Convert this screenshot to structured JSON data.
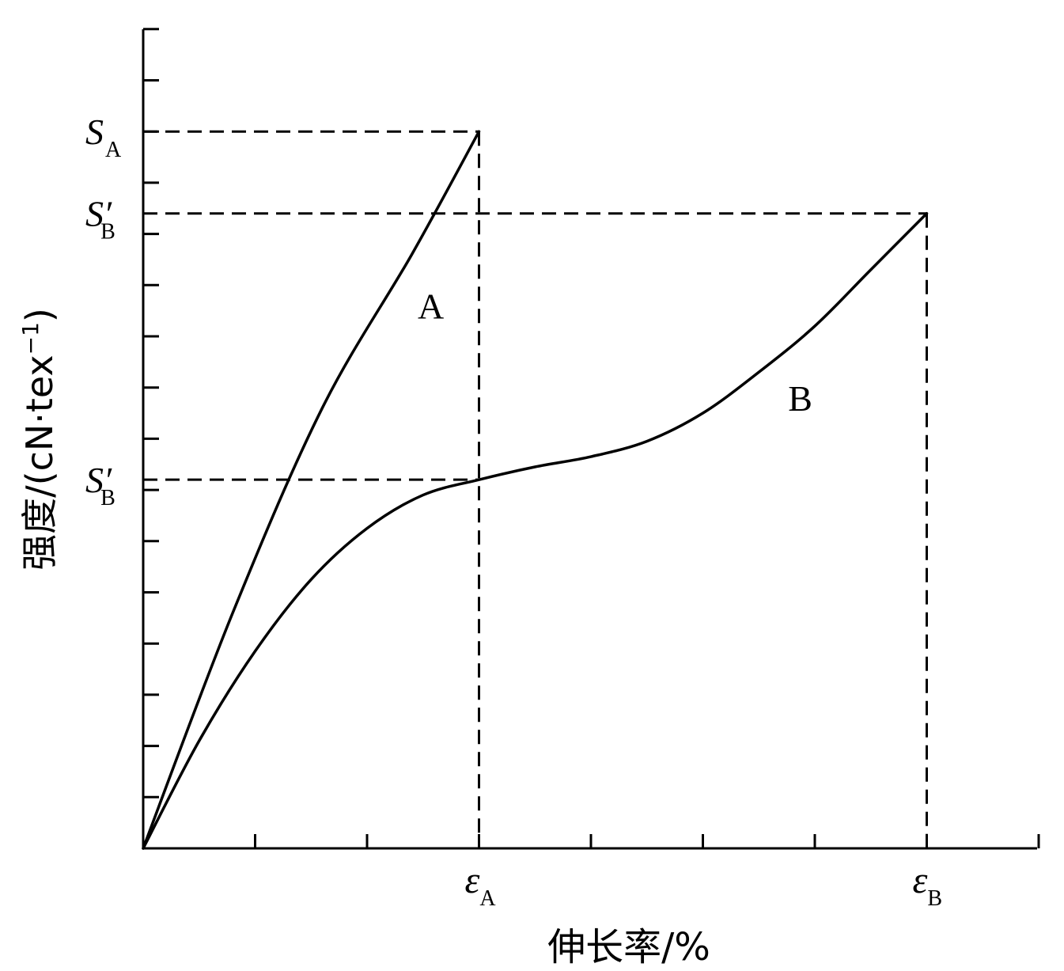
{
  "chart_data": {
    "type": "line",
    "title": "",
    "xlabel": "伸长率/%",
    "ylabel_prefix": "强度/(cN·tex",
    "ylabel_superscript": "−1",
    "ylabel_suffix": ")",
    "xlim": [
      0,
      8
    ],
    "ylim": [
      0,
      16
    ],
    "grid": false,
    "legend": "none",
    "x_ticks": [
      0,
      1,
      2,
      3,
      4,
      5,
      6,
      7,
      8
    ],
    "y_ticks": [
      0,
      1,
      2,
      3,
      4,
      5,
      6,
      7,
      8,
      9,
      10,
      11,
      12,
      13,
      14,
      15,
      16
    ],
    "x_tick_labels": [
      {
        "x": 3,
        "main": "ε",
        "sub": "A"
      },
      {
        "x": 7,
        "main": "ε",
        "sub": "B"
      }
    ],
    "y_tick_labels": [
      {
        "y": 14,
        "main": "S",
        "prime": "",
        "sub": "A"
      },
      {
        "y": 12.4,
        "main": "S",
        "prime": "′",
        "sub": "B"
      },
      {
        "y": 7.2,
        "main": "S",
        "prime": "′",
        "sub": "B"
      }
    ],
    "series": [
      {
        "name": "A",
        "label_at": [
          2.57,
          10.35
        ],
        "x": [
          0,
          0.8,
          1.6,
          2.4,
          3.0
        ],
        "y": [
          0,
          4.6,
          8.6,
          11.6,
          14.0
        ]
      },
      {
        "name": "B",
        "label_at": [
          5.87,
          8.55
        ],
        "x": [
          0,
          0.5,
          1.0,
          1.5,
          2.0,
          2.5,
          3.0,
          3.5,
          4.0,
          4.5,
          5.0,
          5.5,
          6.0,
          6.5,
          7.0
        ],
        "y": [
          0,
          2.1,
          3.85,
          5.25,
          6.25,
          6.9,
          7.2,
          7.45,
          7.65,
          7.95,
          8.5,
          9.3,
          10.2,
          11.3,
          12.4
        ]
      }
    ],
    "reference_lines": [
      {
        "from": [
          0,
          14
        ],
        "to": [
          3,
          14
        ],
        "style": "dashed"
      },
      {
        "from": [
          3,
          14
        ],
        "to": [
          3,
          0
        ],
        "style": "dashed"
      },
      {
        "from": [
          0,
          12.4
        ],
        "to": [
          7,
          12.4
        ],
        "style": "dashed"
      },
      {
        "from": [
          7,
          12.4
        ],
        "to": [
          7,
          0
        ],
        "style": "dashed"
      },
      {
        "from": [
          0,
          7.2
        ],
        "to": [
          3,
          7.2
        ],
        "style": "dashed"
      }
    ]
  }
}
